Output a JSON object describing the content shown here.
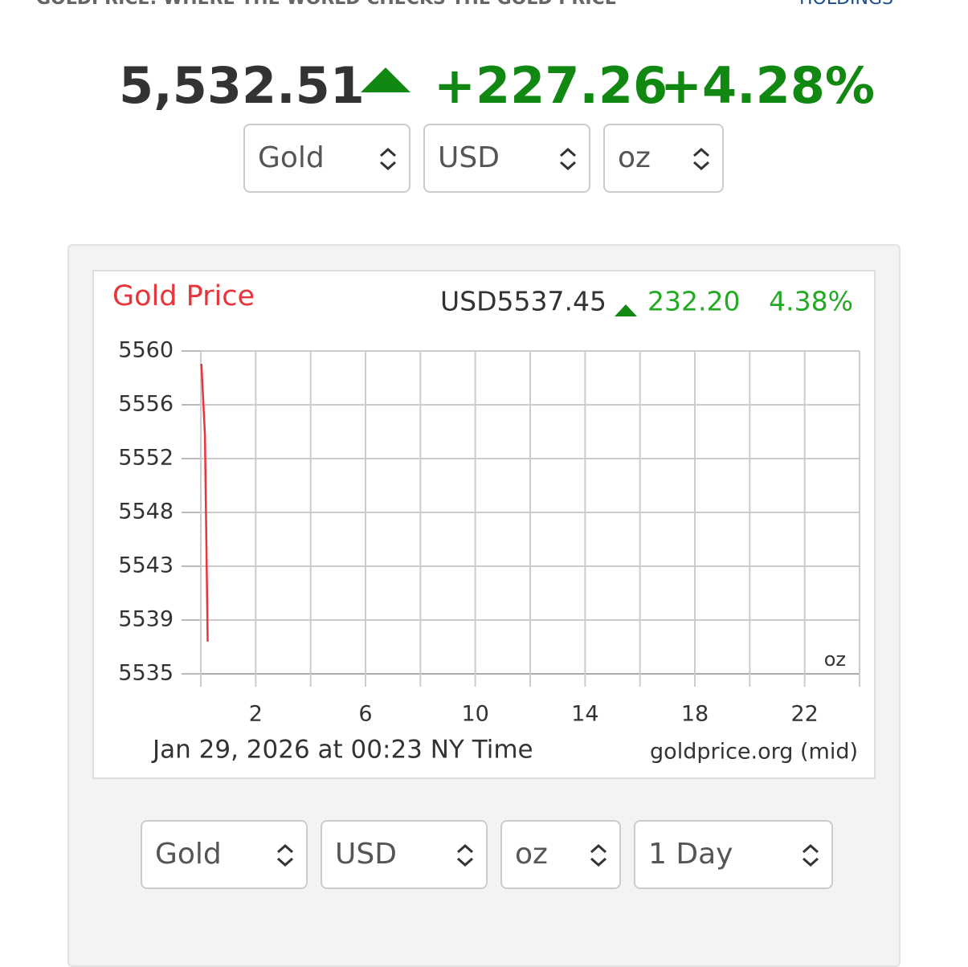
{
  "header": {
    "tagline": "GOLDPRICE: WHERE THE WORLD CHECKS THE GOLD PRICE",
    "brand": "HOLDINGS"
  },
  "quote": {
    "price": "5,532.51",
    "change": "+227.26",
    "change_percent": "+4.28%"
  },
  "top_selectors": [
    "Gold",
    "USD",
    "oz"
  ],
  "bottom_selectors": [
    "Gold",
    "USD",
    "oz",
    "1 Day"
  ],
  "chart_data": {
    "type": "line",
    "title": "Gold Price",
    "price": "USD5537.45",
    "change": "232.20",
    "change_percent": "4.38%",
    "unit_label": "oz",
    "footer_time": "Jan 29, 2026 at 00:23 NY Time",
    "source": "goldprice.org (mid)",
    "x": [
      0.02,
      0.15,
      0.25
    ],
    "values": [
      5559,
      5553.5,
      5537.5
    ],
    "color": "#e8343a",
    "xlim": [
      0,
      24
    ],
    "xticks": [
      2,
      6,
      10,
      14,
      18,
      22
    ],
    "xminor": [
      0,
      4,
      8,
      12,
      16,
      20,
      24
    ],
    "ylim": [
      5535,
      5560
    ],
    "yticks": [
      5535,
      {
        "value": 5539.17,
        "label": "5539"
      },
      {
        "value": 5543.33,
        "label": "5543"
      },
      {
        "value": 5547.5,
        "label": "5548"
      },
      {
        "value": 5551.67,
        "label": "5552"
      },
      {
        "value": 5555.83,
        "label": "5556"
      },
      5560
    ],
    "grid": true
  }
}
